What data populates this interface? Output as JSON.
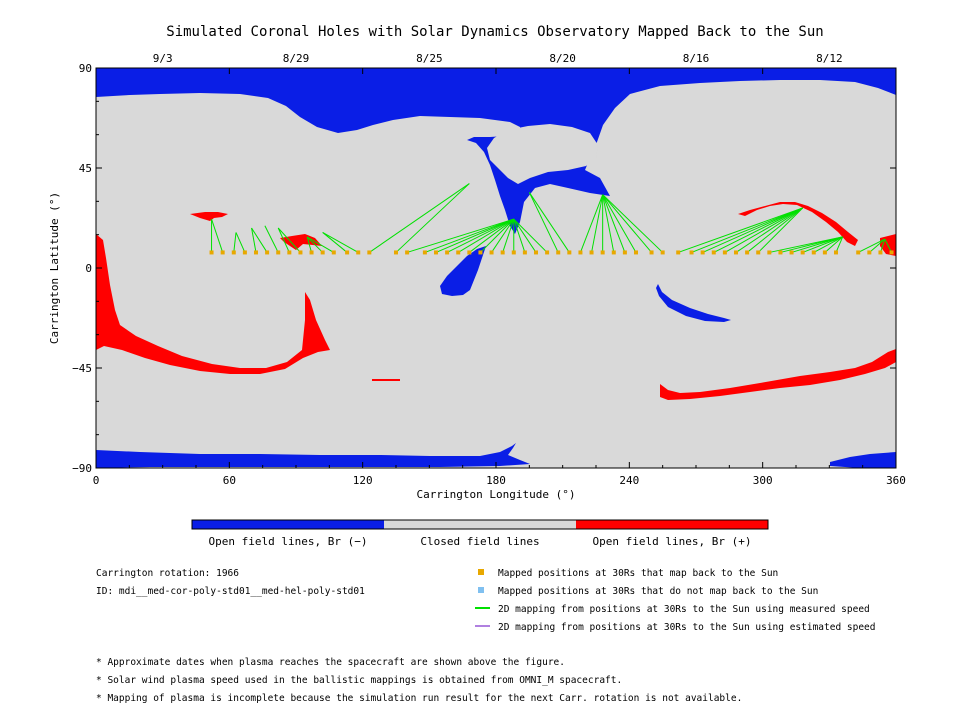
{
  "chart_data": {
    "type": "map",
    "title": "Simulated Coronal Holes with Solar Dynamics Observatory Mapped Back to the Sun",
    "xlabel": "Carrington Longitude (°)",
    "ylabel": "Carrington Latitude (°)",
    "xlim": [
      0,
      360
    ],
    "ylim": [
      -90,
      90
    ],
    "x_ticks": [
      "0",
      "60",
      "120",
      "180",
      "240",
      "300",
      "360"
    ],
    "y_ticks": [
      "90",
      "45",
      "0",
      "-45",
      "-90"
    ],
    "top_axis_dates": [
      {
        "lon": 30,
        "label": "9/3"
      },
      {
        "lon": 90,
        "label": "8/29"
      },
      {
        "lon": 150,
        "label": "8/25"
      },
      {
        "lon": 210,
        "label": "8/20"
      },
      {
        "lon": 270,
        "label": "8/16"
      },
      {
        "lon": 330,
        "label": "8/12"
      }
    ],
    "colors": {
      "open_negative": "#0a1ee6",
      "closed": "#d9d9d9",
      "open_positive": "#ff0000",
      "mapped_point": "#e8a800",
      "measured_line": "#00e000",
      "estimated_line": "#b080e0",
      "unmapped_point": "#80c0f0"
    },
    "mapped_positions_lon": [
      52,
      57,
      62,
      67,
      72,
      77,
      82,
      87,
      92,
      97,
      102,
      107,
      113,
      118,
      123,
      135,
      140,
      148,
      153,
      158,
      163,
      168,
      173,
      178,
      183,
      188,
      193,
      198,
      203,
      208,
      213,
      218,
      223,
      228,
      233,
      238,
      243,
      250,
      255,
      262,
      268,
      273,
      278,
      283,
      288,
      293,
      298,
      303,
      308,
      313,
      318,
      323,
      328,
      333,
      343,
      348,
      353,
      358
    ],
    "mapped_latitude": 7,
    "footpoints": [
      {
        "lon": 52,
        "lat": 22,
        "from": [
          52,
          57
        ]
      },
      {
        "lon": 63,
        "lat": 16,
        "from": [
          62,
          67
        ]
      },
      {
        "lon": 70,
        "lat": 18,
        "from": [
          72,
          77
        ]
      },
      {
        "lon": 76,
        "lat": 19,
        "from": [
          82
        ]
      },
      {
        "lon": 82,
        "lat": 18,
        "from": [
          87,
          92
        ]
      },
      {
        "lon": 95,
        "lat": 14,
        "from": [
          97,
          102,
          107
        ]
      },
      {
        "lon": 102,
        "lat": 16,
        "from": [
          113,
          118
        ]
      },
      {
        "lon": 168,
        "lat": 38,
        "from": [
          123,
          135
        ]
      },
      {
        "lon": 188,
        "lat": 22,
        "from": [
          140,
          148,
          153,
          158,
          163,
          168,
          173,
          178,
          183,
          188,
          193,
          198,
          203
        ]
      },
      {
        "lon": 195,
        "lat": 34,
        "from": [
          208,
          213
        ]
      },
      {
        "lon": 228,
        "lat": 33,
        "from": [
          218,
          223,
          228,
          233,
          238,
          243,
          250,
          255
        ]
      },
      {
        "lon": 318,
        "lat": 27,
        "from": [
          262,
          268,
          273,
          278,
          283,
          288,
          293,
          298
        ]
      },
      {
        "lon": 336,
        "lat": 14,
        "from": [
          303,
          308,
          313,
          318,
          323,
          328,
          333
        ]
      },
      {
        "lon": 355,
        "lat": 13,
        "from": [
          343,
          348,
          353,
          358
        ]
      }
    ]
  },
  "colorbar": {
    "labels": [
      "Open field lines, Br (−)",
      "Closed field lines",
      "Open field lines, Br (+)"
    ]
  },
  "info": {
    "rotation": "Carrington rotation: 1966",
    "id": "ID: mdi__med-cor-poly-std01__med-hel-poly-std01"
  },
  "legend": [
    {
      "symbol": "square",
      "color": "#e8a800",
      "label": "Mapped positions at 30Rs that map back to the Sun"
    },
    {
      "symbol": "square",
      "color": "#80c0f0",
      "label": "Mapped positions at 30Rs that do not map back to the Sun"
    },
    {
      "symbol": "line",
      "color": "#00e000",
      "label": "2D mapping from positions at 30Rs to the Sun using measured speed"
    },
    {
      "symbol": "line",
      "color": "#b080e0",
      "label": "2D mapping from positions at 30Rs to the Sun using estimated speed"
    }
  ],
  "notes": [
    "* Approximate dates when plasma reaches the spacecraft are shown above the figure.",
    "* Solar wind plasma speed used in the ballistic mappings is obtained from OMNI_M spacecraft.",
    "* Mapping of plasma is incomplete because the simulation run result for the next Carr. rotation is not available."
  ]
}
